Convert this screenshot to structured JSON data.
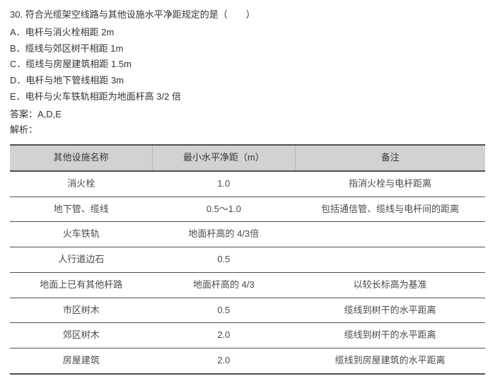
{
  "question": {
    "number": "30.",
    "text": "符合光缆架空线路与其他设施水平净距规定的是（　　）"
  },
  "options": [
    "A．电杆与消火栓相距 2m",
    "B．缆线与郊区树干相距 1m",
    "C．缆线与房屋建筑相距 1.5m",
    "D．电杆与地下管线相距 3m",
    "E．电杆与火车铁轨相距为地面杆高 3/2 倍"
  ],
  "answer_label": "答案：",
  "answer_value": "A,D,E",
  "explain_label": "解析：",
  "table": {
    "headers": [
      "其他设施名称",
      "最小水平净距（m）",
      "备注"
    ],
    "rows": [
      [
        "消火栓",
        "1.0",
        "指消火栓与电杆距离"
      ],
      [
        "地下管、缆线",
        "0.5～1.0",
        "包括通信管、缆线与电杆间的距离"
      ],
      [
        "火车铁轨",
        "地面杆高的 4/3倍",
        ""
      ],
      [
        "人行道边石",
        "0.5",
        ""
      ],
      [
        "地面上已有其他杆路",
        "地面杆高的 4/3",
        "以较长标高为基准"
      ],
      [
        "市区树木",
        "0.5",
        "缆线到树干的水平距离"
      ],
      [
        "郊区树木",
        "2.0",
        "缆线到树干的水平距离"
      ],
      [
        "房屋建筑",
        "2.0",
        "缆线到房屋建筑的水平距离"
      ]
    ]
  }
}
